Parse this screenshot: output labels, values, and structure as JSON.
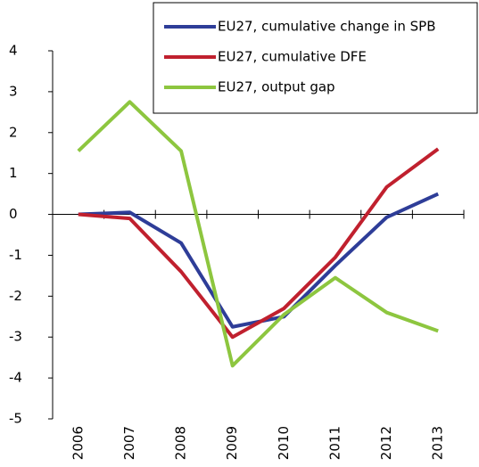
{
  "chart_data": {
    "type": "line",
    "categories": [
      "2006",
      "2007",
      "2008",
      "2009",
      "2010",
      "2011",
      "2012",
      "2013"
    ],
    "series": [
      {
        "name": "EU27, cumulative change in SPB",
        "color": "#2e3d98",
        "values": [
          0,
          0.05,
          -0.7,
          -2.75,
          -2.5,
          -1.25,
          -0.07,
          0.5
        ]
      },
      {
        "name": "EU27, cumulative DFE",
        "color": "#c0202e",
        "values": [
          0,
          -0.1,
          -1.4,
          -3.0,
          -2.3,
          -1.05,
          0.67,
          1.6
        ]
      },
      {
        "name": "EU27, output gap",
        "color": "#8dc63f",
        "values": [
          1.55,
          2.75,
          1.55,
          -3.7,
          -2.45,
          -1.55,
          -2.4,
          -2.85
        ]
      }
    ],
    "ylim": [
      -5,
      4
    ],
    "yticks": [
      -5,
      -4,
      -3,
      -2,
      -1,
      0,
      1,
      2,
      3,
      4
    ],
    "legend": "upper right",
    "grid": false
  }
}
